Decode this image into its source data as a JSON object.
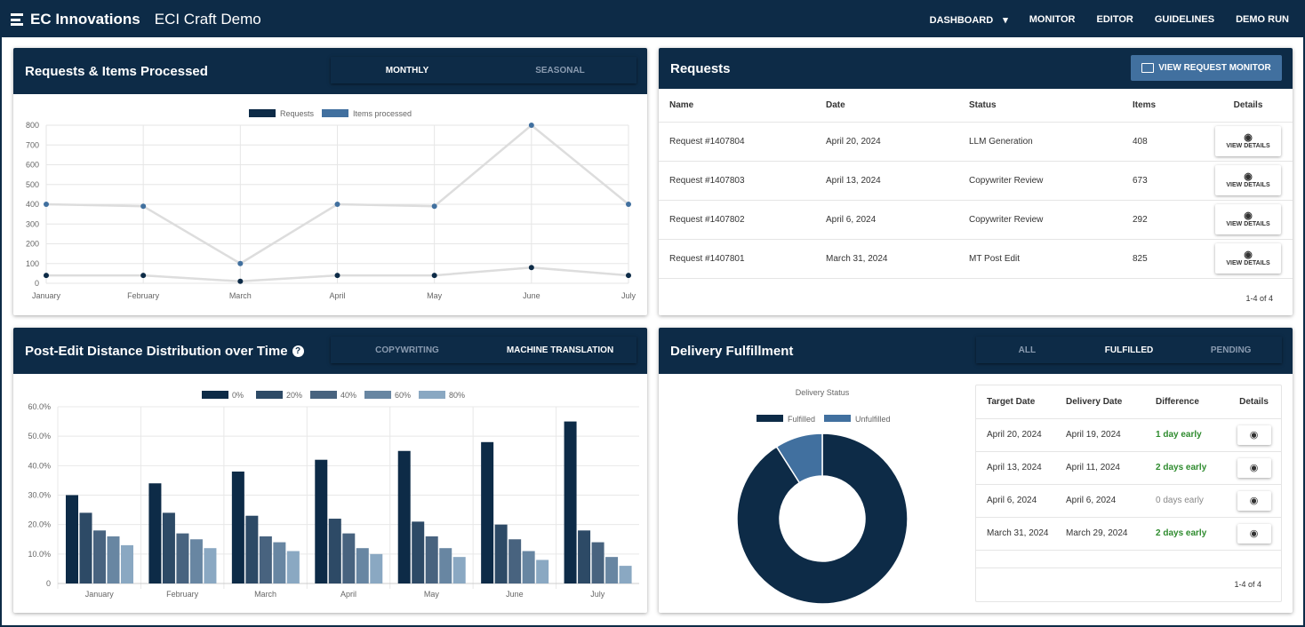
{
  "nav": {
    "brand": "EC Innovations",
    "app": "ECI Craft Demo",
    "items": [
      "DASHBOARD",
      "MONITOR",
      "EDITOR",
      "GUIDELINES",
      "DEMO RUN"
    ]
  },
  "colors": {
    "navy": "#0d2b47",
    "blue": "#41709f",
    "green": "#2e8b2e"
  },
  "requests_chart": {
    "title": "Requests & Items Processed",
    "tabs": [
      "MONTHLY",
      "SEASONAL"
    ],
    "active_tab": "MONTHLY"
  },
  "post_edit": {
    "title": "Post-Edit Distance Distribution over Time",
    "help_icon": "?",
    "tabs": [
      "COPYWRITING",
      "MACHINE TRANSLATION"
    ],
    "active_tab": "MACHINE TRANSLATION"
  },
  "requests": {
    "title": "Requests",
    "monitor_button": "VIEW REQUEST MONITOR",
    "headers": [
      "Name",
      "Date",
      "Status",
      "Items",
      "Details"
    ],
    "rows": [
      [
        "Request #1407804",
        "April 20, 2024",
        "LLM Generation",
        "408"
      ],
      [
        "Request #1407803",
        "April 13, 2024",
        "Copywriter Review",
        "673"
      ],
      [
        "Request #1407802",
        "April 6, 2024",
        "Copywriter Review",
        "292"
      ],
      [
        "Request #1407801",
        "March 31, 2024",
        "MT Post Edit",
        "825"
      ]
    ],
    "details_label": "VIEW DETAILS",
    "pagination": "1-4 of 4"
  },
  "delivery": {
    "title": "Delivery Fulfillment",
    "tabs": [
      "ALL",
      "FULFILLED",
      "PENDING"
    ],
    "active_tab": "FULFILLED",
    "headers": [
      "Target Date",
      "Delivery Date",
      "Difference",
      "Details"
    ],
    "rows": [
      [
        "April 20, 2024",
        "April 19, 2024",
        "1 day early"
      ],
      [
        "April 13, 2024",
        "April 11, 2024",
        "2 days early"
      ],
      [
        "April 6, 2024",
        "April 6, 2024",
        "0 days early"
      ],
      [
        "March 31, 2024",
        "March 29, 2024",
        "2 days early"
      ]
    ],
    "pagination": "1-4 of 4"
  },
  "chart_data": [
    {
      "type": "line",
      "title": "",
      "categories": [
        "January",
        "February",
        "March",
        "April",
        "May",
        "June",
        "July"
      ],
      "ylim": [
        0,
        800
      ],
      "yticks": [
        0,
        100,
        200,
        300,
        400,
        500,
        600,
        700,
        800
      ],
      "legend": "top",
      "series": [
        {
          "name": "Requests",
          "color": "#0d2b47",
          "values": [
            40,
            40,
            10,
            40,
            40,
            80,
            40
          ]
        },
        {
          "name": "Items processed",
          "color": "#41709f",
          "values": [
            400,
            390,
            100,
            400,
            390,
            800,
            400
          ]
        }
      ]
    },
    {
      "type": "bar",
      "categories": [
        "January",
        "February",
        "March",
        "April",
        "May",
        "June",
        "July"
      ],
      "ylim": [
        0,
        60
      ],
      "yticks": [
        "0",
        "10.0%",
        "20.0%",
        "30.0%",
        "40.0%",
        "50.0%",
        "60.0%"
      ],
      "legend": "top",
      "series": [
        {
          "name": "0%",
          "color": "#0d2b47",
          "values": [
            30,
            34,
            38,
            42,
            45,
            48,
            55
          ]
        },
        {
          "name": "20%",
          "color": "#2d4a66",
          "values": [
            24,
            24,
            23,
            22,
            21,
            20,
            18
          ]
        },
        {
          "name": "40%",
          "color": "#48637f",
          "values": [
            18,
            17,
            16,
            17,
            16,
            15,
            14
          ]
        },
        {
          "name": "60%",
          "color": "#6886a2",
          "values": [
            16,
            15,
            14,
            12,
            12,
            11,
            9
          ]
        },
        {
          "name": "80%",
          "color": "#8aa8c2",
          "values": [
            13,
            12,
            11,
            10,
            9,
            8,
            6
          ]
        }
      ]
    },
    {
      "type": "pie",
      "title": "Delivery Status",
      "labels": [
        "Fulfilled",
        "Unfulfilled"
      ],
      "values": [
        91,
        9
      ],
      "colors": [
        "#0d2b47",
        "#41709f"
      ],
      "legend": "top"
    }
  ]
}
